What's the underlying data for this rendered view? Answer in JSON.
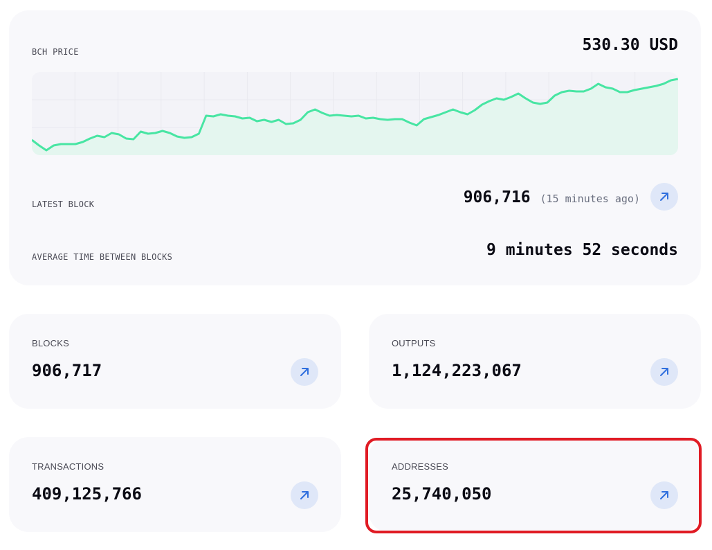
{
  "overview": {
    "price_label": "BCH PRICE",
    "price_value": "530.30 USD",
    "latest_block_label": "LATEST BLOCK",
    "latest_block_value": "906,716",
    "latest_block_age": "(15 minutes ago)",
    "avg_time_label": "AVERAGE TIME BETWEEN BLOCKS",
    "avg_time_value": "9 minutes 52 seconds"
  },
  "chart_data": {
    "type": "area",
    "title": "BCH PRICE",
    "xlabel": "",
    "ylabel": "",
    "grid": true,
    "values": [
      0.22,
      0.14,
      0.07,
      0.14,
      0.16,
      0.16,
      0.16,
      0.19,
      0.24,
      0.28,
      0.26,
      0.32,
      0.3,
      0.24,
      0.23,
      0.34,
      0.31,
      0.32,
      0.35,
      0.32,
      0.27,
      0.25,
      0.26,
      0.31,
      0.57,
      0.56,
      0.59,
      0.57,
      0.56,
      0.53,
      0.54,
      0.49,
      0.51,
      0.48,
      0.51,
      0.45,
      0.46,
      0.51,
      0.62,
      0.66,
      0.61,
      0.57,
      0.58,
      0.57,
      0.56,
      0.57,
      0.53,
      0.54,
      0.52,
      0.51,
      0.52,
      0.52,
      0.47,
      0.43,
      0.52,
      0.55,
      0.58,
      0.62,
      0.66,
      0.62,
      0.59,
      0.65,
      0.73,
      0.78,
      0.82,
      0.8,
      0.84,
      0.89,
      0.82,
      0.76,
      0.74,
      0.76,
      0.86,
      0.91,
      0.93,
      0.92,
      0.92,
      0.96,
      1.03,
      0.98,
      0.96,
      0.91,
      0.91,
      0.94,
      0.96,
      0.98,
      1.0,
      1.03,
      1.08,
      1.1
    ],
    "colors": {
      "line": "#48e5a3",
      "fill": "#e4f6ef",
      "grid": "#e9e9ef"
    }
  },
  "stats": {
    "blocks": {
      "label": "BLOCKS",
      "value": "906,717"
    },
    "outputs": {
      "label": "OUTPUTS",
      "value": "1,124,223,067"
    },
    "transactions": {
      "label": "TRANSACTIONS",
      "value": "409,125,766"
    },
    "addresses": {
      "label": "ADDRESSES",
      "value": "25,740,050"
    }
  },
  "icons": {
    "open_link": "arrow-up-right-icon"
  },
  "colors": {
    "card_bg": "#f8f8fb",
    "icon_bg": "#dfe7f8",
    "icon_fg": "#2f6fde",
    "highlight": "#e01b24"
  }
}
